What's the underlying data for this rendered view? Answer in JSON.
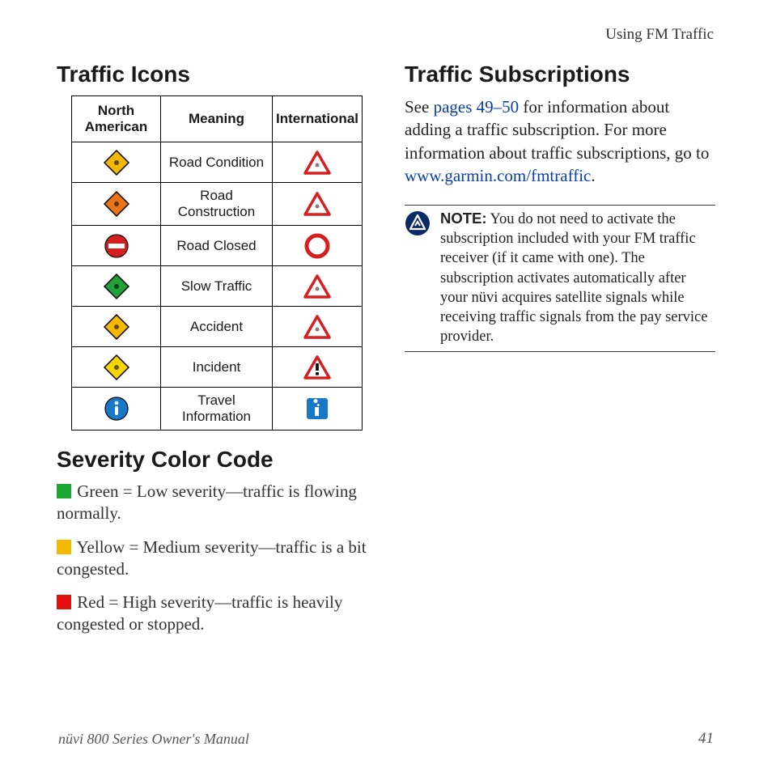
{
  "header": {
    "section_label": "Using FM Traffic"
  },
  "left": {
    "icons_heading": "Traffic Icons",
    "table": {
      "columns": [
        "North American",
        "Meaning",
        "International"
      ],
      "rows": [
        {
          "meaning": "Road Condition",
          "na_shape": "diamond",
          "na_fill": "#f5b800",
          "intl_shape": "triangle",
          "intl_stroke": "#d62020"
        },
        {
          "meaning": "Road Construction",
          "na_shape": "diamond",
          "na_fill": "#e8751a",
          "intl_shape": "triangle",
          "intl_stroke": "#d62020"
        },
        {
          "meaning": "Road Closed",
          "na_shape": "noentry",
          "na_fill": "#d62020",
          "intl_shape": "ring",
          "intl_stroke": "#d62020"
        },
        {
          "meaning": "Slow Traffic",
          "na_shape": "diamond",
          "na_fill": "#20a038",
          "intl_shape": "triangle",
          "intl_stroke": "#d62020"
        },
        {
          "meaning": "Accident",
          "na_shape": "diamond",
          "na_fill": "#f5b800",
          "intl_shape": "triangle",
          "intl_stroke": "#d62020"
        },
        {
          "meaning": "Incident",
          "na_shape": "diamond",
          "na_fill": "#f5d400",
          "intl_shape": "triangle",
          "intl_stroke": "#d62020",
          "intl_bang": true
        },
        {
          "meaning": "Travel Information",
          "na_shape": "info",
          "na_fill": "#1878c8",
          "intl_shape": "infosq",
          "intl_fill": "#1878c8"
        }
      ]
    },
    "severity_heading": "Severity Color Code",
    "severity": [
      {
        "color": "#1da836",
        "label": "Green",
        "text": " = Low severity—traffic is flowing normally."
      },
      {
        "color": "#f5b800",
        "label": "Yellow",
        "text": " = Medium severity—traffic is a bit congested."
      },
      {
        "color": "#e01010",
        "label": "Red",
        "text": " = High severity—traffic is heavily congested or stopped."
      }
    ]
  },
  "right": {
    "heading": "Traffic Subscriptions",
    "body_pre": "See ",
    "link1": "pages 49–50",
    "body_mid1": " for information about adding a traffic subscription. For more information about traffic subscriptions, go to ",
    "link2": "www.garmin.com/fmtraffic",
    "body_post": ".",
    "note_label": "NOTE:",
    "note_text": " You do not need to activate the subscription included with your FM traffic receiver (if it came with one). The subscription activates automatically after your nüvi acquires satellite signals while receiving traffic signals from the pay service provider."
  },
  "footer": {
    "manual": "nüvi 800 Series Owner's Manual",
    "page": "41"
  },
  "colors": {
    "link": "#0a3ea8",
    "note_icon_bg": "#0a2a66"
  }
}
